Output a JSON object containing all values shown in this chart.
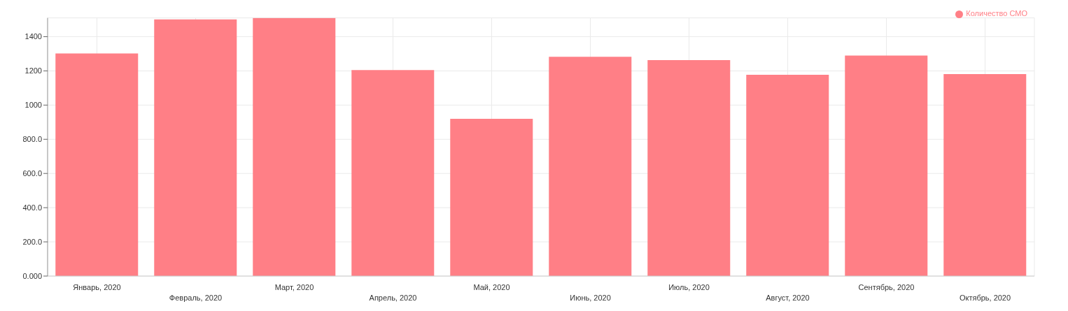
{
  "chart_data": {
    "type": "bar",
    "categories": [
      "Январь, 2020",
      "Февраль, 2020",
      "Март, 2020",
      "Апрель, 2020",
      "Май, 2020",
      "Июнь, 2020",
      "Июль, 2020",
      "Август, 2020",
      "Сентябрь, 2020",
      "Октябрь, 2020"
    ],
    "series": [
      {
        "name": "Количество СМО",
        "color": "#ff7f86",
        "values": [
          1302,
          1501,
          1509,
          1205,
          920,
          1283,
          1263,
          1177,
          1290,
          1181
        ]
      }
    ],
    "ylim": [
      0,
      1510
    ],
    "yticks": [
      {
        "value": 0,
        "label": "0.000"
      },
      {
        "value": 200,
        "label": "200.0"
      },
      {
        "value": 400,
        "label": "400.0"
      },
      {
        "value": 600,
        "label": "600.0"
      },
      {
        "value": 800,
        "label": "800.0"
      },
      1000,
      1200,
      1400
    ],
    "grid": true,
    "legend": "top right"
  }
}
